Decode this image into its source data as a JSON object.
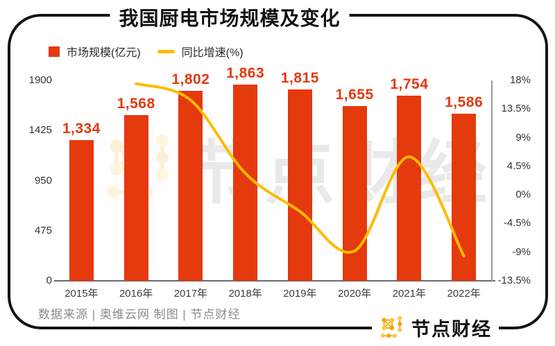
{
  "title": "我国厨电市场规模及变化",
  "legend": {
    "bar_label": "市场规模(亿元)",
    "line_label": "同比增速(%)"
  },
  "chart_data": {
    "type": "bar+line",
    "categories": [
      "2015年",
      "2016年",
      "2017年",
      "2018年",
      "2019年",
      "2020年",
      "2021年",
      "2022年"
    ],
    "series": [
      {
        "name": "市场规模(亿元)",
        "type": "bar",
        "color": "#E5390E",
        "values": [
          1334,
          1568,
          1802,
          1863,
          1815,
          1655,
          1754,
          1586
        ],
        "labels": [
          "1,334",
          "1,568",
          "1,802",
          "1,863",
          "1,815",
          "1,655",
          "1,754",
          "1,586"
        ]
      },
      {
        "name": "同比增速(%)",
        "type": "line",
        "color": "#FFBB00",
        "values": [
          null,
          17.5,
          14.9,
          3.4,
          -2.6,
          -8.8,
          6.0,
          -9.6
        ]
      }
    ],
    "left_axis": {
      "ticks": [
        "1900",
        "1425",
        "950",
        "475",
        "0"
      ],
      "min": 0,
      "max": 1900
    },
    "right_axis": {
      "ticks": [
        "18%",
        "13.5%",
        "9%",
        "4.5%",
        "0%",
        "-4.5%",
        "-9%",
        "-13.5%"
      ],
      "min": -13.5,
      "max": 18
    },
    "grid": false,
    "legend_position": "top-left"
  },
  "colors": {
    "bar": "#E5390E",
    "line": "#FFBB00",
    "value_label": "#E5390E",
    "logo_dark": "#F2A30F",
    "logo_light": "#FFC63E"
  },
  "watermark": {
    "text": "节点财经"
  },
  "footer": {
    "source": "数据来源 | 奥维云网  制图 | 节点财经"
  },
  "brand": {
    "name": "节点财经"
  }
}
